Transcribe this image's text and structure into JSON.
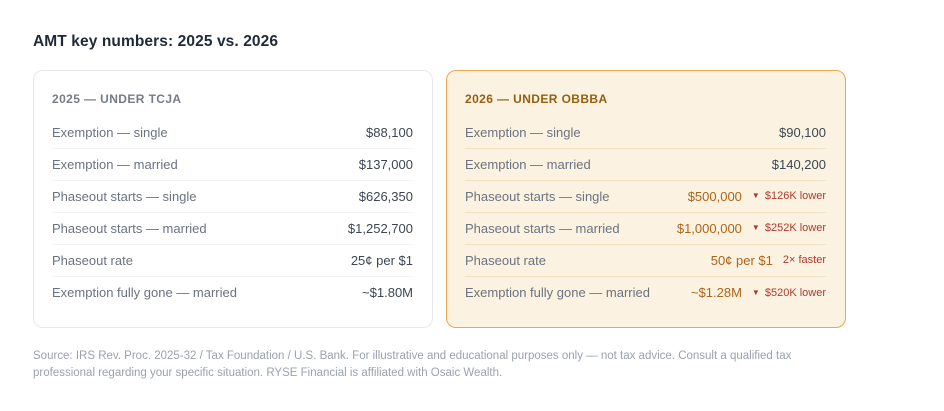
{
  "page": {
    "title": "AMT key numbers: 2025 vs. 2026",
    "footer": "Source: IRS Rev. Proc. 2025-32 / Tax Foundation / U.S. Bank. For illustrative and educational purposes only — not tax advice. Consult a qualified tax professional regarding your specific situation. RYSE Financial is affiliated with Osaic Wealth."
  },
  "colors": {
    "title_text": "#1f2937",
    "label_gray": "#6b7280",
    "value_dark": "#3c4654",
    "accent_amber": "#ae6418",
    "delta_red": "#ac3b30",
    "card_2026_bg": "#fcf2e1",
    "card_2026_border": "#e7a84f",
    "card_2026_header": "#946010",
    "footer_gray": "#9aa2ab"
  },
  "comparison": {
    "cards": [
      {
        "header": "2025 — UNDER TCJA",
        "rows": [
          {
            "label": "Exemption — single",
            "value": "$88,100"
          },
          {
            "label": "Exemption — married",
            "value": "$137,000"
          },
          {
            "label": "Phaseout starts — single",
            "value": "$626,350"
          },
          {
            "label": "Phaseout starts — married",
            "value": "$1,252,700"
          },
          {
            "label": "Phaseout rate",
            "value": "25¢ per $1"
          },
          {
            "label": "Exemption fully gone — married",
            "value": "~$1.80M"
          }
        ]
      },
      {
        "header": "2026 — UNDER OBBBA",
        "rows": [
          {
            "label": "Exemption — single",
            "value": "$90,100"
          },
          {
            "label": "Exemption — married",
            "value": "$140,200"
          },
          {
            "label": "Phaseout starts — single",
            "value": "$500,000",
            "accent": true,
            "delta_icon": "▼",
            "delta_text": "$126K lower"
          },
          {
            "label": "Phaseout starts — married",
            "value": "$1,000,000",
            "accent": true,
            "delta_icon": "▼",
            "delta_text": "$252K lower"
          },
          {
            "label": "Phaseout rate",
            "value": "50¢ per $1",
            "accent": true,
            "delta_text": "2× faster"
          },
          {
            "label": "Exemption fully gone — married",
            "value": "~$1.28M",
            "accent": true,
            "delta_icon": "▼",
            "delta_text": "$520K lower"
          }
        ]
      }
    ]
  },
  "chart_data": [
    {
      "type": "table",
      "title": "2025 — UNDER TCJA",
      "rows": [
        [
          "Exemption — single",
          "$88,100"
        ],
        [
          "Exemption — married",
          "$137,000"
        ],
        [
          "Phaseout starts — single",
          "$626,350"
        ],
        [
          "Phaseout starts — married",
          "$1,252,700"
        ],
        [
          "Phaseout rate",
          "25¢ per $1"
        ],
        [
          "Exemption fully gone — married",
          "~$1.80M"
        ]
      ]
    },
    {
      "type": "table",
      "title": "2026 — UNDER OBBBA",
      "rows": [
        [
          "Exemption — single",
          "$90,100",
          ""
        ],
        [
          "Exemption — married",
          "$140,200",
          ""
        ],
        [
          "Phaseout starts — single",
          "$500,000",
          "▼ $126K lower"
        ],
        [
          "Phaseout starts — married",
          "$1,000,000",
          "▼ $252K lower"
        ],
        [
          "Phaseout rate",
          "50¢ per $1",
          "2× faster"
        ],
        [
          "Exemption fully gone — married",
          "~$1.28M",
          "▼ $520K lower"
        ]
      ]
    }
  ]
}
